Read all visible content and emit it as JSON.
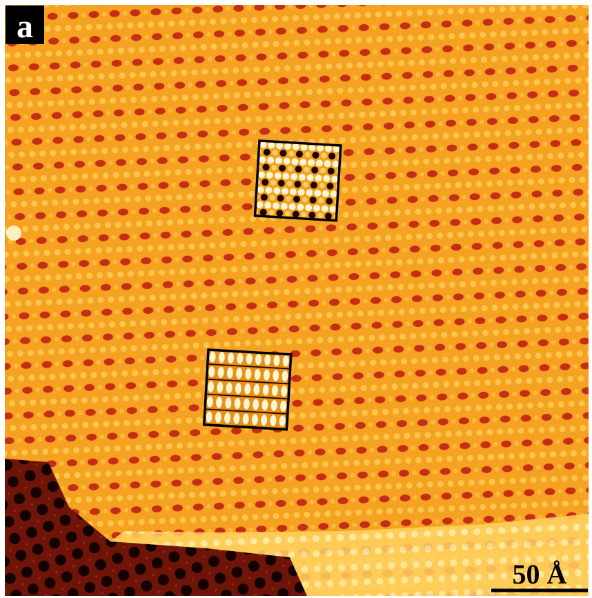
{
  "panel_label": "a",
  "scale_bar": {
    "label": "50 Å"
  }
}
